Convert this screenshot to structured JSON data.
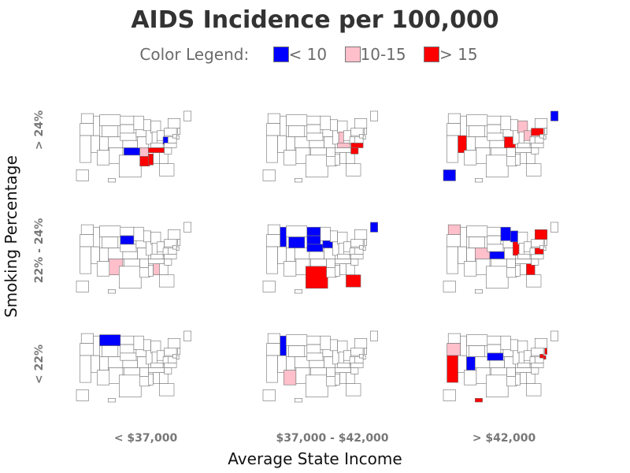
{
  "chart_data": {
    "type": "choropleth-panel",
    "title": "AIDS Incidence per 100,000",
    "legend": {
      "label": "Color Legend:",
      "entries": [
        {
          "label": "< 10",
          "color": "#0000ff"
        },
        {
          "label": "10-15",
          "color": "#ffc0cb"
        },
        {
          "label": "> 15",
          "color": "#ff0000"
        }
      ]
    },
    "ylabel": "Smoking Percentage",
    "xlabel": "Average State Income",
    "row_labels": [
      "> 24%",
      "22% - 24%",
      "< 22%"
    ],
    "col_labels": [
      "< $37,000",
      "$37,000 - $42,000",
      "> $42,000"
    ],
    "panels": [
      {
        "row": 0,
        "col": 0,
        "states": {
          "OK": "< 10",
          "WV": "< 10",
          "AR": "10-15",
          "MS": "> 15",
          "LA": "> 15",
          "TN": "> 15"
        }
      },
      {
        "row": 0,
        "col": 1,
        "states": {
          "IN": "10-15",
          "KY": "10-15",
          "NC": "> 15",
          "SC": "> 15"
        }
      },
      {
        "row": 0,
        "col": 2,
        "states": {
          "AK": "< 10",
          "ME": "< 10",
          "MI": "10-15",
          "OH": "10-15",
          "NV": "> 15",
          "MO": "> 15",
          "PA": "> 15"
        }
      },
      {
        "row": 1,
        "col": 0,
        "states": {
          "SD": "< 10",
          "NM": "10-15",
          "AL": "10-15"
        }
      },
      {
        "row": 1,
        "col": 1,
        "states": {
          "ID": "< 10",
          "ND": "< 10",
          "SD": "< 10",
          "IA": "< 10",
          "NE": "< 10",
          "WY": "< 10",
          "ME": "< 10",
          "TX": "> 15",
          "FL": "> 15"
        }
      },
      {
        "row": 1,
        "col": 2,
        "states": {
          "WA": "10-15",
          "CO": "10-15",
          "MN": "< 10",
          "WI": "< 10",
          "KS": "< 10",
          "IL": "> 15",
          "NY": "> 15",
          "VA": "> 15",
          "GA": "> 15"
        }
      },
      {
        "row": 2,
        "col": 0,
        "states": {
          "MT": "< 10"
        }
      },
      {
        "row": 2,
        "col": 1,
        "states": {
          "ID": "< 10",
          "AZ": "10-15"
        }
      },
      {
        "row": 2,
        "col": 2,
        "states": {
          "OR": "10-15",
          "UT": "< 10",
          "NE": "< 10",
          "CA": "> 15",
          "HI": "> 15",
          "NJ": "> 15",
          "DE": "> 15",
          "MD": "> 15"
        }
      }
    ]
  }
}
